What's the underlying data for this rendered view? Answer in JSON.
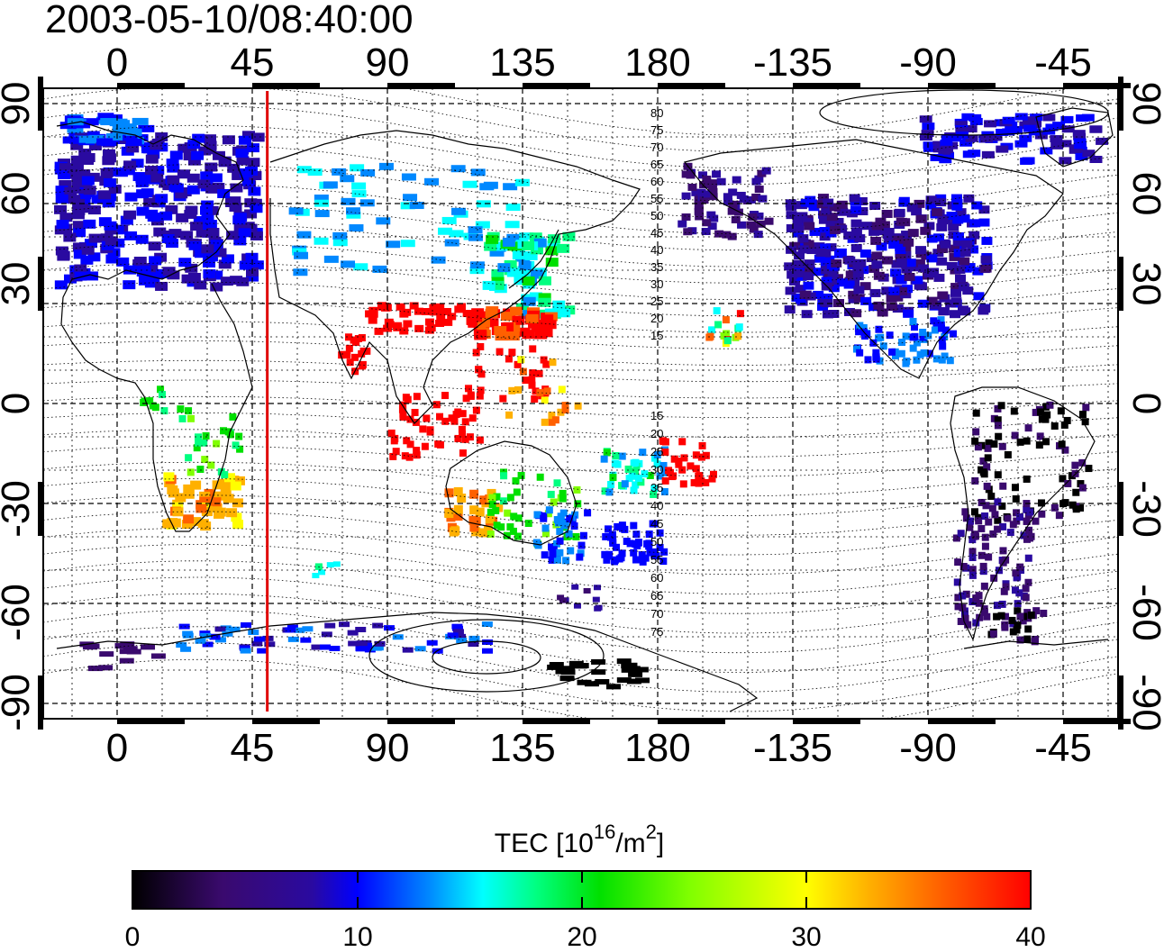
{
  "title": "2003-05-10/08:40:00",
  "map": {
    "lon_ticks_top": [
      "0",
      "45",
      "90",
      "135",
      "180",
      "-135",
      "-90",
      "-45"
    ],
    "lon_ticks_bottom": [
      "0",
      "45",
      "90",
      "135",
      "180",
      "-135",
      "-90",
      "-45"
    ],
    "lat_ticks_left": [
      "90",
      "60",
      "30",
      "0",
      "-30",
      "-60",
      "-90"
    ],
    "lat_ticks_right": [
      "90",
      "60",
      "30",
      "0",
      "-30",
      "-60",
      "-90"
    ],
    "marker_line": {
      "longitude": 50,
      "color": "#e00000"
    },
    "contour_labels_north": [
      "80",
      "75",
      "70",
      "65",
      "60",
      "55",
      "50",
      "45",
      "40",
      "35",
      "30",
      "25",
      "20",
      "15"
    ],
    "contour_labels_south": [
      "15",
      "20",
      "25",
      "30",
      "35",
      "40",
      "45",
      "50",
      "55",
      "60",
      "65",
      "70",
      "75"
    ]
  },
  "colorbar": {
    "label_main": "TEC",
    "label_unit_pre": "[10",
    "label_unit_exp1": "16",
    "label_unit_mid": "/m",
    "label_unit_exp2": "2",
    "label_unit_post": "]",
    "min": 0,
    "max": 40,
    "tick_labels": [
      "0",
      "10",
      "20",
      "30",
      "40"
    ],
    "colors": [
      "#000000",
      "#3a0a6e",
      "#2a0aa0",
      "#0000ff",
      "#0088ff",
      "#00ffff",
      "#00ff80",
      "#00e000",
      "#80ff00",
      "#ffff00",
      "#ffb000",
      "#ff6000",
      "#ff0000"
    ]
  }
}
